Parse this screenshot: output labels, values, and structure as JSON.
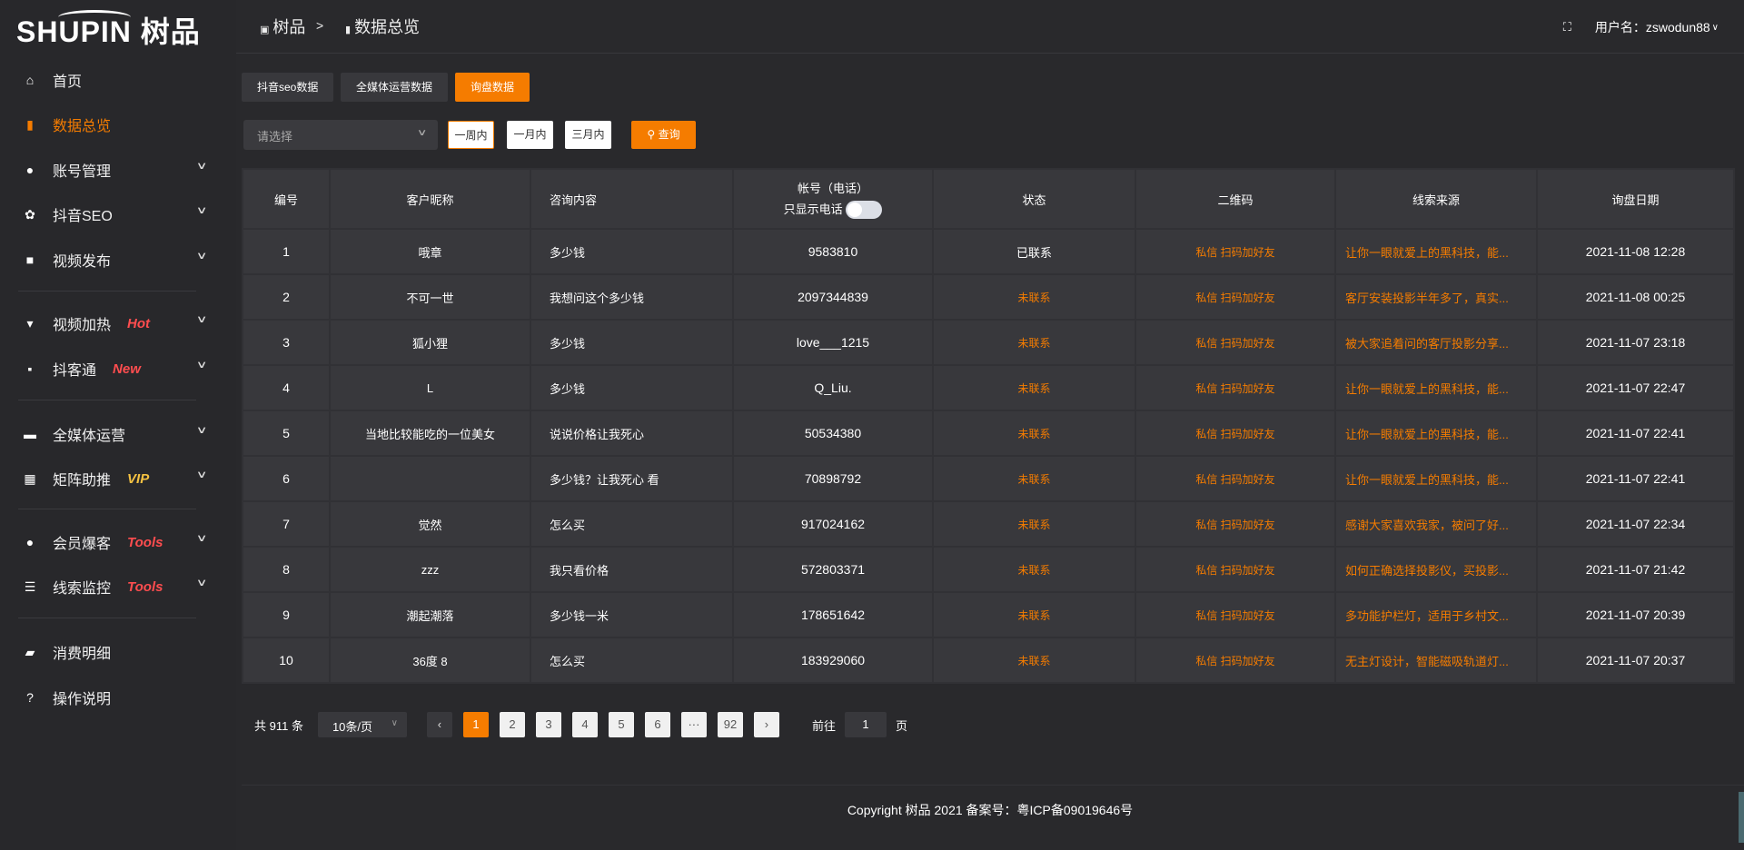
{
  "brand": {
    "logo_text": "SHUPIN 树品"
  },
  "sidebar": {
    "items": [
      {
        "label": "首页",
        "icon": "home-icon",
        "glyph": "⌂",
        "badge": "",
        "chevron": false,
        "active": false
      },
      {
        "label": "数据总览",
        "icon": "bar-chart-icon",
        "glyph": "▮",
        "badge": "",
        "chevron": false,
        "active": true
      },
      {
        "label": "账号管理",
        "icon": "user-icon",
        "glyph": "●",
        "badge": "",
        "chevron": true
      },
      {
        "label": "抖音SEO",
        "icon": "gear-icon",
        "glyph": "✿",
        "badge": "",
        "chevron": true
      },
      {
        "label": "视频发布",
        "icon": "video-camera-icon",
        "glyph": "■",
        "badge": "",
        "chevron": true
      },
      {
        "label": "视频加热",
        "icon": "hot-icon",
        "glyph": "▾",
        "badge": "Hot",
        "badge_color": "#ff4d4f",
        "chevron": true
      },
      {
        "label": "抖客通",
        "icon": "chat-icon",
        "glyph": "▪",
        "badge": "New",
        "badge_color": "#ff4d4f",
        "chevron": true
      },
      {
        "label": "全媒体运营",
        "icon": "monitor-icon",
        "glyph": "▬",
        "badge": "",
        "chevron": true
      },
      {
        "label": "矩阵助推",
        "icon": "grid-icon",
        "glyph": "▦",
        "badge": "VIP",
        "badge_color": "#f5c242",
        "chevron": true
      },
      {
        "label": "会员爆客",
        "icon": "member-icon",
        "glyph": "●",
        "badge": "Tools",
        "badge_color": "#ff4d4f",
        "chevron": true
      },
      {
        "label": "线索监控",
        "icon": "sliders-icon",
        "glyph": "☰",
        "badge": "Tools",
        "badge_color": "#ff4d4f",
        "chevron": true
      },
      {
        "label": "消费明细",
        "icon": "wallet-icon",
        "glyph": "▰",
        "badge": "",
        "chevron": false
      },
      {
        "label": "操作说明",
        "icon": "help-icon",
        "glyph": "?",
        "badge": "",
        "chevron": false
      }
    ]
  },
  "header": {
    "breadcrumb": [
      "树品",
      "数据总览"
    ],
    "separator": ">",
    "username_label": "用户名：",
    "username": "zswodun88"
  },
  "tabs": [
    {
      "label": "抖音seo数据"
    },
    {
      "label": "全媒体运营数据"
    },
    {
      "label": "询盘数据",
      "active": true
    }
  ],
  "filters": {
    "select_placeholder": "请选择",
    "periods": [
      "一周内",
      "一月内",
      "三月内"
    ],
    "active_period": "一周内",
    "query_label": "查询"
  },
  "table": {
    "headers": [
      "编号",
      "客户昵称",
      "咨询内容",
      "帐号（电话）",
      "状态",
      "二维码",
      "线索来源",
      "询盘日期"
    ],
    "phone_toggle_label": "只显示电话",
    "phone_toggle_on": false,
    "rows": [
      {
        "id": "1",
        "name": "哦章",
        "content": "多少钱",
        "account": "9583810",
        "status": "已联系",
        "qr": "私信 扫码加好友",
        "source": "让你一眼就爱上的黑科技，能...",
        "date": "2021-11-08 12:28"
      },
      {
        "id": "2",
        "name": "不可一世",
        "content": "我想问这个多少钱",
        "account": "2097344839",
        "status": "未联系",
        "qr": "私信 扫码加好友",
        "source": "客厅安装投影半年多了，真实...",
        "date": "2021-11-08 00:25"
      },
      {
        "id": "3",
        "name": "狐小狸",
        "content": "多少钱",
        "account": "love___1215",
        "status": "未联系",
        "qr": "私信 扫码加好友",
        "source": "被大家追着问的客厅投影分享...",
        "date": "2021-11-07 23:18"
      },
      {
        "id": "4",
        "name": "L",
        "content": "多少钱",
        "account": "Q_Liu.",
        "status": "未联系",
        "qr": "私信 扫码加好友",
        "source": "让你一眼就爱上的黑科技，能...",
        "date": "2021-11-07 22:47"
      },
      {
        "id": "5",
        "name": "当地比较能吃的一位美女",
        "content": "说说价格让我死心",
        "account": "50534380",
        "status": "未联系",
        "qr": "私信 扫码加好友",
        "source": "让你一眼就爱上的黑科技，能...",
        "date": "2021-11-07 22:41"
      },
      {
        "id": "6",
        "name": "",
        "content": "多少钱？让我死心 看",
        "account": "70898792",
        "status": "未联系",
        "qr": "私信 扫码加好友",
        "source": "让你一眼就爱上的黑科技，能...",
        "date": "2021-11-07 22:41"
      },
      {
        "id": "7",
        "name": "觉然",
        "content": "怎么买",
        "account": "917024162",
        "status": "未联系",
        "qr": "私信 扫码加好友",
        "source": "感谢大家喜欢我家，被问了好...",
        "date": "2021-11-07 22:34"
      },
      {
        "id": "8",
        "name": "zzz",
        "content": "我只看价格",
        "account": "572803371",
        "status": "未联系",
        "qr": "私信 扫码加好友",
        "source": "如何正确选择投影仪，买投影...",
        "date": "2021-11-07 21:42"
      },
      {
        "id": "9",
        "name": "潮起潮落",
        "content": "多少钱一米",
        "account": "178651642",
        "status": "未联系",
        "qr": "私信 扫码加好友",
        "source": "多功能护栏灯，适用于乡村文...",
        "date": "2021-11-07 20:39"
      },
      {
        "id": "10",
        "name": "36度 8",
        "content": "怎么买",
        "account": "183929060",
        "status": "未联系",
        "qr": "私信 扫码加好友",
        "source": "无主灯设计，智能磁吸轨道灯...",
        "date": "2021-11-07 20:37"
      }
    ]
  },
  "pagination": {
    "total_label": "共 911 条",
    "page_size": "10条/页",
    "pages": [
      "1",
      "2",
      "3",
      "4",
      "5",
      "6",
      "···",
      "92"
    ],
    "current": "1",
    "goto_label": "前往",
    "goto_value": "1",
    "page_suffix": "页"
  },
  "footer": {
    "copyright": "Copyright 树品 2021 备案号：粤ICP备09019646号"
  },
  "colors": {
    "accent": "#f57c00",
    "hot": "#ff4d4f",
    "vip": "#f5c242"
  }
}
